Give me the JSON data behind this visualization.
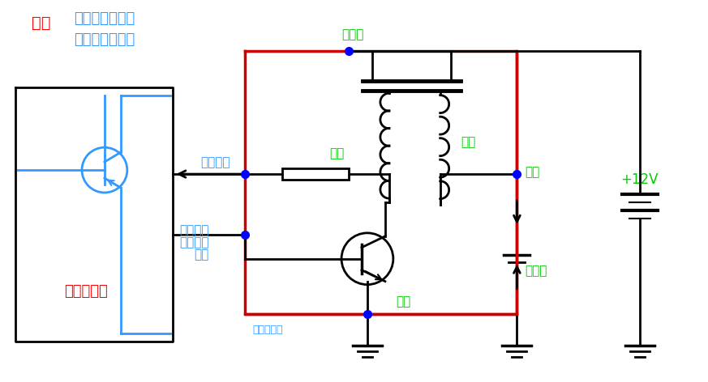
{
  "bg_color": "#FFFFFF",
  "green": "#00CC00",
  "blue": "#3399FF",
  "red": "#FF0000",
  "black": "#000000",
  "circuit_red": "#CC0000",
  "title_toyota": "丰田",
  "title_line1": "四线反馈型独立",
  "title_line2": "点火线圈电路图",
  "label_power": "电源正",
  "label_primary": "初级",
  "label_secondary": "次级",
  "label_hv": "高压",
  "label_feedback": "反馈信号",
  "label_ignition": "点火信号",
  "label_duty": "正占空比",
  "label_control": "控制",
  "label_ground": "接地",
  "label_spark": "火花塞",
  "label_12v": "+12V",
  "label_ecm": "发动机电脑",
  "label_watermark": "车师傅电子",
  "figw": 8.73,
  "figh": 4.72,
  "dpi": 100
}
